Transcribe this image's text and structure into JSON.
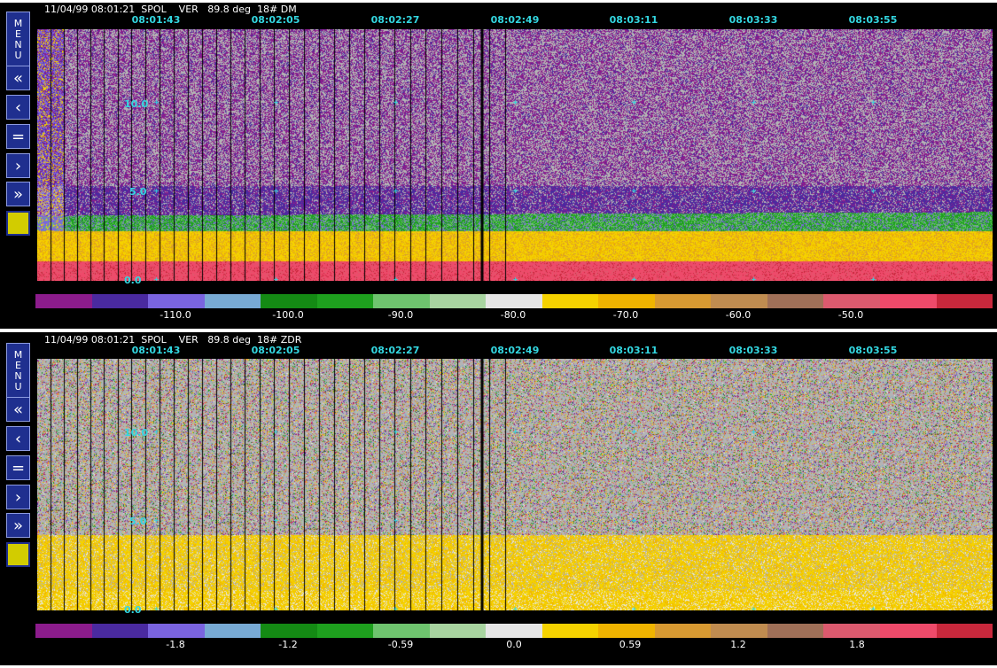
{
  "panels": [
    {
      "header": "11/04/99 08:01:21  SPOL    VER   89.8 deg  18# DM",
      "time_labels": [
        "08:01:43",
        "08:02:05",
        "08:02:27",
        "08:02:49",
        "08:03:11",
        "08:03:33",
        "08:03:55"
      ],
      "y_labels": [
        "10.0",
        "5.0",
        "0.0"
      ],
      "colorbar_labels": [
        "-110.0",
        "-100.0",
        "-90.0",
        "-80.0",
        "-70.0",
        "-60.0",
        "-50.0"
      ],
      "field": "DM"
    },
    {
      "header": "11/04/99 08:01:21  SPOL    VER   89.8 deg  18# ZDR",
      "time_labels": [
        "08:01:43",
        "08:02:05",
        "08:02:27",
        "08:02:49",
        "08:03:11",
        "08:03:33",
        "08:03:55"
      ],
      "y_labels": [
        "10.0",
        "5.0",
        "0.0"
      ],
      "colorbar_labels": [
        "-1.8",
        "-1.2",
        "-0.59",
        "0.0",
        "0.59",
        "1.2",
        "1.8"
      ],
      "field": "ZDR"
    }
  ],
  "sidebar": {
    "menu_label": [
      "M",
      "E",
      "N",
      "U"
    ],
    "buttons": [
      "«",
      "‹",
      "=",
      "›",
      "»"
    ]
  },
  "colors": {
    "colorbar": [
      "#8c1c8c",
      "#4a2aa0",
      "#7a64e0",
      "#78aad4",
      "#148a14",
      "#1ea01e",
      "#6ec46e",
      "#a8d4a0",
      "#e6e6e6",
      "#f5d200",
      "#f0b400",
      "#d89a32",
      "#c08c50",
      "#a07058",
      "#dc5a6e",
      "#ee4a6a",
      "#c8283c"
    ],
    "text": "#ffffff",
    "accent": "#33d6e0",
    "background": "#000000",
    "plot_background": "#b4b4b4"
  }
}
